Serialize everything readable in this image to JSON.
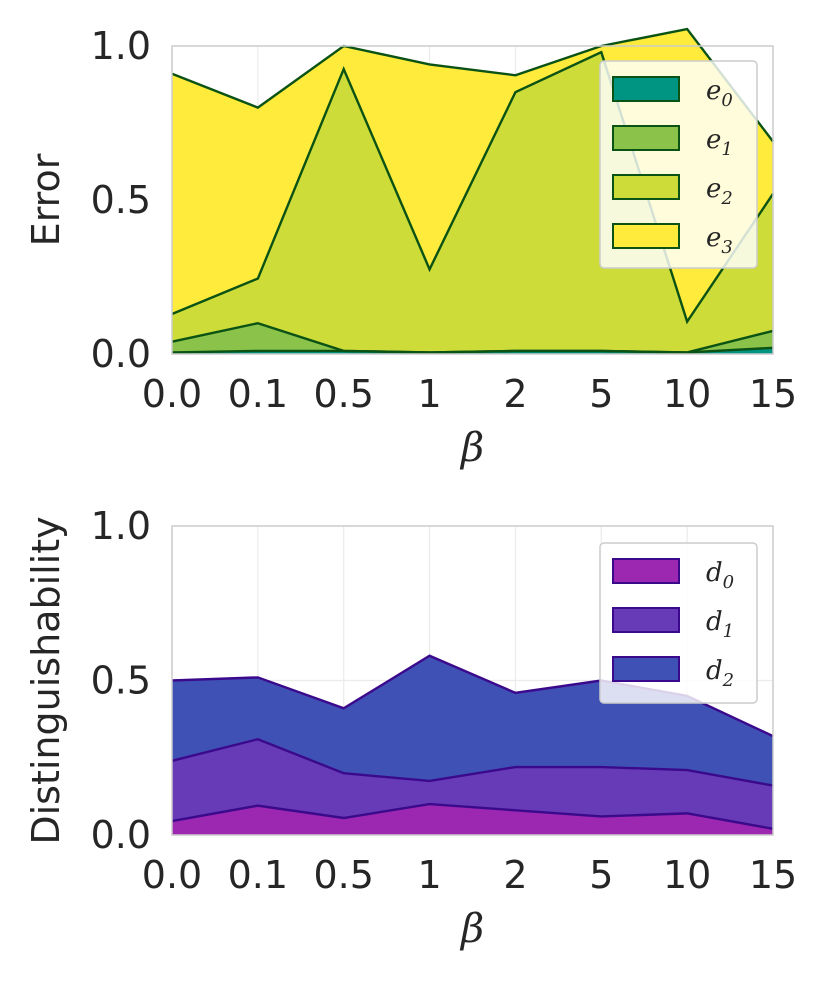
{
  "chart_data": [
    {
      "type": "area",
      "stacked": true,
      "categories": [
        "0.0",
        "0.1",
        "0.5",
        "1",
        "2",
        "5",
        "10",
        "15"
      ],
      "xlabel": "β",
      "ylabel": "Error",
      "ylim": [
        0,
        1
      ],
      "yticks": [
        "0.0",
        "0.5",
        "1.0"
      ],
      "grid": true,
      "legend_position": "upper-right",
      "edge_color": "#0b5215",
      "series": [
        {
          "name": "e",
          "sub": "0",
          "color": "#009482",
          "values": [
            0.005,
            0.01,
            0.01,
            0.005,
            0.01,
            0.01,
            0.005,
            0.02
          ]
        },
        {
          "name": "e",
          "sub": "1",
          "color": "#8bc34a",
          "values": [
            0.035,
            0.09,
            0.0,
            0.0,
            0.0,
            0.0,
            0.0,
            0.055
          ]
        },
        {
          "name": "e",
          "sub": "2",
          "color": "#cddc39",
          "values": [
            0.09,
            0.145,
            0.915,
            0.27,
            0.84,
            0.97,
            0.1,
            0.445
          ]
        },
        {
          "name": "e",
          "sub": "3",
          "color": "#ffeb3b",
          "values": [
            0.78,
            0.555,
            0.075,
            0.665,
            0.055,
            0.02,
            0.95,
            0.17
          ]
        }
      ]
    },
    {
      "type": "area",
      "stacked": true,
      "categories": [
        "0.0",
        "0.1",
        "0.5",
        "1",
        "2",
        "5",
        "10",
        "15"
      ],
      "xlabel": "β",
      "ylabel": "Distinguishability",
      "ylim": [
        0,
        1
      ],
      "yticks": [
        "0.0",
        "0.5",
        "1.0"
      ],
      "grid": true,
      "legend_position": "upper-right",
      "edge_color": "#3b0a8c",
      "series": [
        {
          "name": "d",
          "sub": "0",
          "color": "#9c27b0",
          "values": [
            0.045,
            0.095,
            0.055,
            0.1,
            0.08,
            0.06,
            0.07,
            0.02
          ]
        },
        {
          "name": "d",
          "sub": "1",
          "color": "#673ab7",
          "values": [
            0.195,
            0.215,
            0.145,
            0.075,
            0.14,
            0.16,
            0.14,
            0.14
          ]
        },
        {
          "name": "d",
          "sub": "2",
          "color": "#3f51b5",
          "values": [
            0.26,
            0.2,
            0.21,
            0.405,
            0.24,
            0.28,
            0.24,
            0.16
          ]
        }
      ]
    }
  ]
}
